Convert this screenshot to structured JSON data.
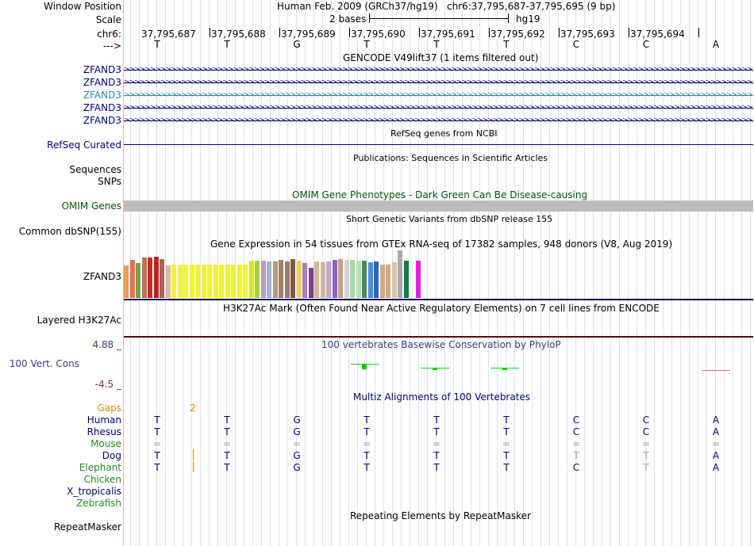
{
  "header": {
    "window_position_label": "Window Position",
    "scale_label": "Scale",
    "chrom_label": "chr6:",
    "strand_label": "--->",
    "assembly": "Human Feb. 2009 (GRCh37/hg19)",
    "position": "chr6:37,795,687-37,795,695 (9 bp)",
    "scale_text": "2 bases",
    "scale_db": "hg19"
  },
  "ruler": [
    "37,795,687",
    "37,795,688",
    "37,795,689",
    "37,795,690",
    "37,795,691",
    "37,795,692",
    "37,795,693",
    "37,795,694"
  ],
  "bases": [
    "T",
    "T",
    "G",
    "T",
    "T",
    "T",
    "C",
    "C",
    "A"
  ],
  "tracks": {
    "gencode_title": "GENCODE V49lift37 (1 items filtered out)",
    "gencode_items": [
      "ZFAND3",
      "ZFAND3",
      "ZFAND3",
      "ZFAND3",
      "ZFAND3"
    ],
    "refseq_title": "RefSeq genes from NCBI",
    "refseq_label": "RefSeq Curated",
    "pubs_title": "Publications: Sequences in Scientific Articles",
    "sequences_label": "Sequences",
    "snps_label": "SNPs",
    "omim_title": "OMIM Gene Phenotypes - Dark Green Can Be Disease-causing",
    "omim_label": "OMIM Genes",
    "dbsnp_title": "Short Genetic Variants from dbSNP release 155",
    "dbsnp_label": "Common dbSNP(155)",
    "gtex_title": "Gene Expression in 54 tissues from GTEx RNA-seq of 17382 samples, 948 donors (V8, Aug 2019)",
    "gtex_label": "ZFAND3",
    "h3k_title": "H3K27Ac Mark (Often Found Near Active Regulatory Elements) on 7 cell lines from ENCODE",
    "h3k_label": "Layered H3K27Ac",
    "phylop_title": "100 vertebrates Basewise Conservation by PhyloP",
    "phylop_label": "100 Vert. Cons",
    "phylop_max": "4.88 _",
    "phylop_min": "-4.5 _",
    "multiz_title": "Multiz Alignments of 100 Vertebrates",
    "gaps_label": "Gaps",
    "gaps_value": "2",
    "species": [
      "Human",
      "Rhesus",
      "Mouse",
      "Dog",
      "Elephant",
      "Chicken",
      "X_tropicalis",
      "Zebrafish"
    ],
    "rmsk_title": "Repeating Elements by RepeatMasker",
    "rmsk_label": "RepeatMasker"
  },
  "alignment": {
    "Human": [
      "T",
      "T",
      "G",
      "T",
      "T",
      "T",
      "C",
      "C",
      "A"
    ],
    "Rhesus": [
      "T",
      "T",
      "G",
      "T",
      "T",
      "T",
      "C",
      "C",
      "A"
    ],
    "Mouse": [
      "=",
      "=",
      "=",
      "=",
      "=",
      "=",
      "=",
      "=",
      "="
    ],
    "Dog": [
      "T",
      "T",
      "G",
      "T",
      "T",
      "T",
      "T",
      "T",
      "A"
    ],
    "Elephant": [
      "T",
      "T",
      "G",
      "T",
      "T",
      "T",
      "C",
      "T",
      "A"
    ]
  },
  "gtex_colors": [
    "#f39b4d",
    "#e7714b",
    "#7f9f51",
    "#b3765b",
    "#d6271f",
    "#bd1f23",
    "#a96359",
    "#d9b9a6",
    "#f1f13a",
    "#f1f13a",
    "#f1f13a",
    "#f1f13a",
    "#f1f13a",
    "#f1f13a",
    "#f1f13a",
    "#f1f13a",
    "#f1f13a",
    "#f1f13a",
    "#f1f13a",
    "#f1f13a",
    "#f1f13a",
    "#d6e62b",
    "#a7ce3a",
    "#b99bc2",
    "#9db6d3",
    "#b09a81",
    "#a67f62",
    "#9b7a66",
    "#7f5a45",
    "#f0cf6a",
    "#a87db8",
    "#7a3f8a",
    "#d6b592",
    "#c8b7a0",
    "#c4a7c5",
    "#8b62cd",
    "#c4a080",
    "#d1d1d1",
    "#a9d7a7",
    "#b7e3b1",
    "#4b8a5e",
    "#4b8fe0",
    "#2567c0",
    "#d4a77f",
    "#d4a77f",
    "#d6c6a3",
    "#aaaaaa",
    "#028040",
    "#f6f6f6",
    "#e21fdb"
  ],
  "gtex_values": [
    0.78,
    0.92,
    0.85,
    0.98,
    0.98,
    1.0,
    0.95,
    0.79,
    0.81,
    0.81,
    0.81,
    0.81,
    0.81,
    0.81,
    0.81,
    0.81,
    0.81,
    0.81,
    0.81,
    0.81,
    0.81,
    0.91,
    0.9,
    0.91,
    0.88,
    0.89,
    0.93,
    0.89,
    0.94,
    0.91,
    0.84,
    0.73,
    0.88,
    0.87,
    0.89,
    0.92,
    0.94,
    0.92,
    0.92,
    0.9,
    0.9,
    0.87,
    0.89,
    0.81,
    0.81,
    0.86,
    1.15,
    0.9,
    0.9,
    0.9
  ],
  "colors": {
    "navy": "#000080",
    "teal": "#2a8ca5",
    "omim_green": "#055205",
    "mouse_green": "#228b22",
    "gap_orange": "#e08a00",
    "phylop_blue": "#3a3a8c",
    "phylop_red": "#8c2a2a",
    "cons_green": "#00e000"
  }
}
